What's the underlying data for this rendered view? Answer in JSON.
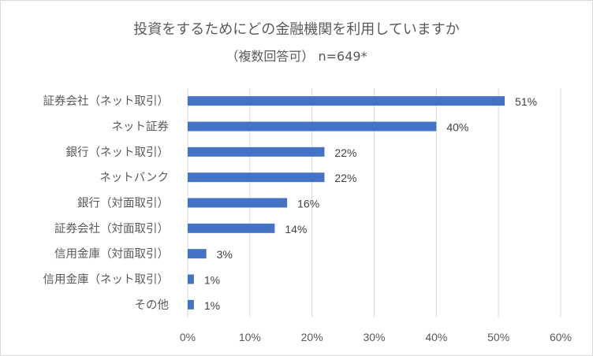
{
  "chart_data": {
    "type": "bar",
    "orientation": "horizontal",
    "title": "投資をするためにどの金融機関を利用していますか",
    "subtitle": "（複数回答可）  n=649*",
    "categories": [
      "証券会社（ネット取引）",
      "ネット証券",
      "銀行（ネット取引）",
      "ネットバンク",
      "銀行（対面取引）",
      "証券会社（対面取引）",
      "信用金庫（対面取引）",
      "信用金庫（ネット取引）",
      "その他"
    ],
    "values": [
      51,
      40,
      22,
      22,
      16,
      14,
      3,
      1,
      1
    ],
    "data_labels": [
      "51%",
      "40%",
      "22%",
      "22%",
      "16%",
      "14%",
      "3%",
      "1%",
      "1%"
    ],
    "xlim": [
      0,
      60
    ],
    "x_ticks": [
      0,
      10,
      20,
      30,
      40,
      50,
      60
    ],
    "x_tick_labels": [
      "0%",
      "10%",
      "20%",
      "30%",
      "40%",
      "50%",
      "60%"
    ],
    "grid": true,
    "bar_color": "#4472c4",
    "grid_color": "#d9d9d9"
  }
}
